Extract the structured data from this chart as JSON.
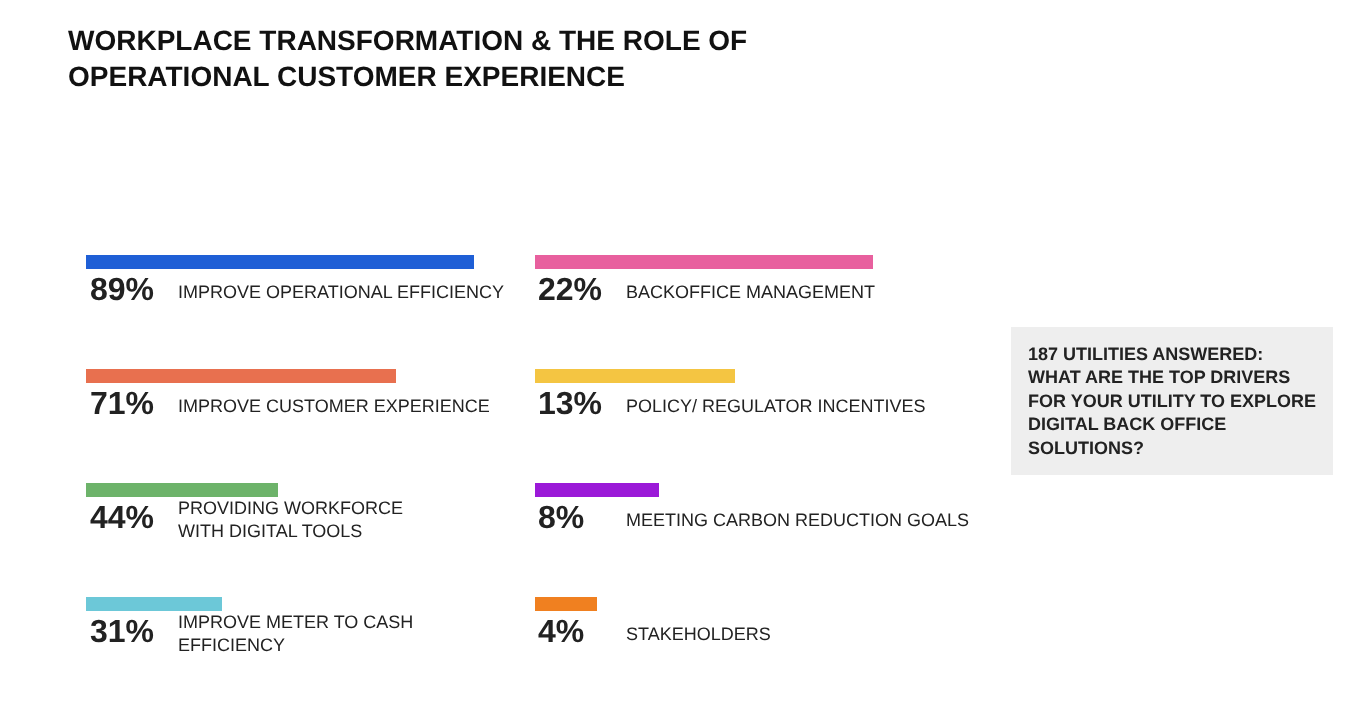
{
  "chart_data": [
    {
      "type": "bar",
      "orientation": "horizontal",
      "title": "WORKPLACE TRANSFORMATION & THE ROLE OF\nOPERATIONAL CUSTOMER EXPERIENCE",
      "categories": [
        "IMPROVE OPERATIONAL EFFICIENCY",
        "IMPROVE CUSTOMER EXPERIENCE",
        "PROVIDING WORKFORCE\nWITH DIGITAL TOOLS",
        "IMPROVE METER TO CASH\nEFFICIENCY"
      ],
      "values": [
        89,
        71,
        44,
        31
      ],
      "value_labels": [
        "89%",
        "71%",
        "44%",
        "31%"
      ],
      "colors": [
        "#1f5fd6",
        "#e8704f",
        "#6db36a",
        "#6cc8d8"
      ],
      "tick_labels": false
    },
    {
      "type": "bar",
      "orientation": "horizontal",
      "categories": [
        "BACKOFFICE MANAGEMENT",
        "POLICY/ REGULATOR INCENTIVES",
        "MEETING CARBON REDUCTION GOALS",
        "STAKEHOLDERS"
      ],
      "values": [
        22,
        13,
        8,
        4
      ],
      "value_labels": [
        "22%",
        "13%",
        "8%",
        "4%"
      ],
      "colors": [
        "#e8609e",
        "#f4c542",
        "#9b19d8",
        "#f08020"
      ],
      "tick_labels": false,
      "annotations": [
        "187 UTILITIES ANSWERED:\nWHAT ARE THE TOP DRIVERS\nFOR YOUR UTILITY TO EXPLORE\nDIGITAL BACK OFFICE\nSOLUTIONS?"
      ]
    }
  ]
}
